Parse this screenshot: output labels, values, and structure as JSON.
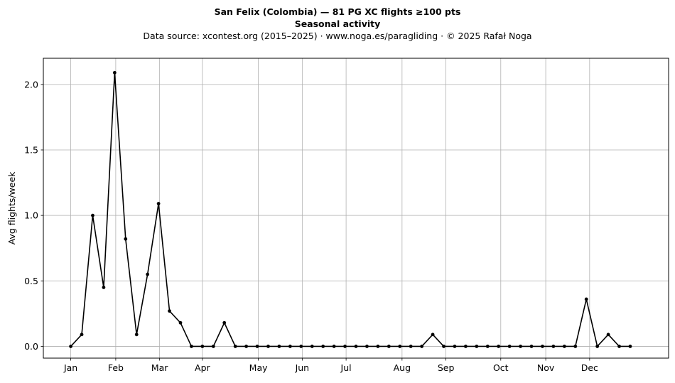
{
  "header": {
    "title": "San Felix (Colombia)  —  81 PG XC flights ≥100 pts",
    "subtitle": "Seasonal activity",
    "source": "Data source: xcontest.org (2015–2025)  ·  www.noga.es/paragliding  ·  © 2025 Rafał Noga"
  },
  "chart_data": {
    "type": "line",
    "title": "San Felix (Colombia)  —  81 PG XC flights ≥100 pts",
    "subtitle": "Seasonal activity",
    "xlabel": "",
    "ylabel": "Avg flights/week",
    "ylim": [
      -0.09,
      2.2
    ],
    "yticks": [
      0.0,
      0.5,
      1.0,
      1.5,
      2.0
    ],
    "ytick_labels": [
      "0.0",
      "0.5",
      "1.0",
      "1.5",
      "2.0"
    ],
    "xlim": [
      -2.5,
      54.5
    ],
    "x_ticks": [
      {
        "label": "Jan",
        "week": 0
      },
      {
        "label": "Feb",
        "week": 4.1
      },
      {
        "label": "Mar",
        "week": 8.1
      },
      {
        "label": "Apr",
        "week": 12.0
      },
      {
        "label": "May",
        "week": 17.1
      },
      {
        "label": "Jun",
        "week": 21.1
      },
      {
        "label": "Jul",
        "week": 25.1
      },
      {
        "label": "Aug",
        "week": 30.2
      },
      {
        "label": "Sep",
        "week": 34.2
      },
      {
        "label": "Oct",
        "week": 39.2
      },
      {
        "label": "Nov",
        "week": 43.3
      },
      {
        "label": "Dec",
        "week": 47.3
      }
    ],
    "grid": true,
    "line_color": "#000000",
    "series": [
      {
        "x": [
          0,
          1,
          2,
          3,
          4,
          5,
          6,
          7,
          8,
          9,
          10,
          11,
          12,
          13,
          14,
          15,
          16,
          17,
          18,
          19,
          20,
          21,
          22,
          23,
          24,
          25,
          26,
          27,
          28,
          29,
          30,
          31,
          32,
          33,
          34,
          35,
          36,
          37,
          38,
          39,
          40,
          41,
          42,
          43,
          44,
          45,
          46,
          47,
          48,
          49,
          50,
          51
        ],
        "values": [
          0.0,
          0.09,
          1.0,
          0.45,
          2.09,
          0.82,
          0.09,
          0.55,
          1.09,
          0.27,
          0.18,
          0.0,
          0.0,
          0.0,
          0.18,
          0.0,
          0.0,
          0.0,
          0.0,
          0.0,
          0.0,
          0.0,
          0.0,
          0.0,
          0.0,
          0.0,
          0.0,
          0.0,
          0.0,
          0.0,
          0.0,
          0.0,
          0.0,
          0.09,
          0.0,
          0.0,
          0.0,
          0.0,
          0.0,
          0.0,
          0.0,
          0.0,
          0.0,
          0.0,
          0.0,
          0.0,
          0.0,
          0.36,
          0.0,
          0.09,
          0.0,
          0.0
        ]
      }
    ]
  }
}
